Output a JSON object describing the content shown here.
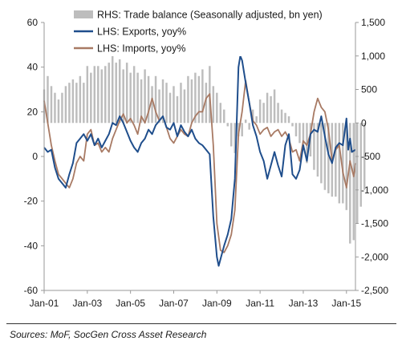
{
  "chart_data": {
    "type": "combo",
    "x_unit": "month",
    "x_range": [
      "2001-01",
      "2015-06"
    ],
    "x_ticks": [
      "Jan-01",
      "Jan-03",
      "Jan-05",
      "Jan-07",
      "Jan-09",
      "Jan-11",
      "Jan-13",
      "Jan-15"
    ],
    "left_axis": {
      "ticks": [
        "60",
        "40",
        "20",
        "0",
        "-20",
        "-40",
        "-60"
      ],
      "ylim": [
        -60,
        60
      ]
    },
    "right_axis": {
      "ticks": [
        "1,500",
        "1,000",
        "500",
        "0",
        "-500",
        "-1,000",
        "-1,500",
        "-2,000",
        "-2,500"
      ],
      "ylim": [
        -2500,
        1500
      ]
    },
    "gridlines": false,
    "legend": {
      "placement": "top-center"
    },
    "series": [
      {
        "name": "RHS: Trade balance (Seasonally adjusted, bn yen)",
        "kind": "bar",
        "axis": "right",
        "color": "#bdbdbd",
        "sampled_every_months": 2,
        "values": [
          500,
          700,
          550,
          450,
          350,
          450,
          550,
          600,
          650,
          600,
          700,
          600,
          850,
          750,
          850,
          850,
          800,
          850,
          900,
          1000,
          900,
          950,
          800,
          900,
          750,
          850,
          750,
          650,
          800,
          700,
          550,
          700,
          500,
          650,
          600,
          450,
          550,
          400,
          600,
          500,
          700,
          650,
          750,
          700,
          800,
          600,
          850,
          550,
          450,
          300,
          200,
          -50,
          -350,
          -450,
          -200,
          -200,
          50,
          -100,
          200,
          100,
          350,
          300,
          450,
          400,
          500,
          300,
          200,
          150,
          100,
          -50,
          -200,
          -300,
          -400,
          -600,
          -500,
          -700,
          -800,
          -900,
          -1000,
          -1050,
          -1100,
          -1100,
          -1200,
          -1200,
          -1300,
          -1800,
          -1750,
          -1500,
          -1250,
          -1000
        ]
      },
      {
        "name": "LHS: Exports, yoy%",
        "kind": "line",
        "axis": "left",
        "color": "#1f4e8c",
        "points": [
          [
            "2001-01",
            4
          ],
          [
            "2001-03",
            2
          ],
          [
            "2001-05",
            3
          ],
          [
            "2001-07",
            -5
          ],
          [
            "2001-09",
            -10
          ],
          [
            "2001-11",
            -12
          ],
          [
            "2002-01",
            -14
          ],
          [
            "2002-03",
            -8
          ],
          [
            "2002-05",
            -3
          ],
          [
            "2002-07",
            6
          ],
          [
            "2002-09",
            8
          ],
          [
            "2002-11",
            10
          ],
          [
            "2003-01",
            7
          ],
          [
            "2003-03",
            10
          ],
          [
            "2003-05",
            5
          ],
          [
            "2003-07",
            8
          ],
          [
            "2003-09",
            4
          ],
          [
            "2003-11",
            7
          ],
          [
            "2004-01",
            10
          ],
          [
            "2004-03",
            15
          ],
          [
            "2004-05",
            14
          ],
          [
            "2004-07",
            18
          ],
          [
            "2004-09",
            15
          ],
          [
            "2004-11",
            11
          ],
          [
            "2005-01",
            7
          ],
          [
            "2005-03",
            4
          ],
          [
            "2005-05",
            2
          ],
          [
            "2005-07",
            6
          ],
          [
            "2005-09",
            8
          ],
          [
            "2005-11",
            12
          ],
          [
            "2006-01",
            10
          ],
          [
            "2006-03",
            14
          ],
          [
            "2006-05",
            16
          ],
          [
            "2006-07",
            18
          ],
          [
            "2006-09",
            13
          ],
          [
            "2006-11",
            12
          ],
          [
            "2007-01",
            15
          ],
          [
            "2007-03",
            9
          ],
          [
            "2007-05",
            14
          ],
          [
            "2007-07",
            11
          ],
          [
            "2007-09",
            9
          ],
          [
            "2007-11",
            12
          ],
          [
            "2008-01",
            8
          ],
          [
            "2008-03",
            6
          ],
          [
            "2008-05",
            5
          ],
          [
            "2008-07",
            3
          ],
          [
            "2008-09",
            1
          ],
          [
            "2008-11",
            -27
          ],
          [
            "2009-01",
            -45
          ],
          [
            "2009-02",
            -49
          ],
          [
            "2009-03",
            -46
          ],
          [
            "2009-05",
            -40
          ],
          [
            "2009-07",
            -35
          ],
          [
            "2009-09",
            -28
          ],
          [
            "2009-11",
            -10
          ],
          [
            "2010-01",
            40
          ],
          [
            "2010-02",
            45
          ],
          [
            "2010-03",
            43
          ],
          [
            "2010-05",
            33
          ],
          [
            "2010-07",
            24
          ],
          [
            "2010-09",
            14
          ],
          [
            "2010-11",
            9
          ],
          [
            "2011-01",
            2
          ],
          [
            "2011-03",
            -2
          ],
          [
            "2011-05",
            -10
          ],
          [
            "2011-07",
            -4
          ],
          [
            "2011-09",
            2
          ],
          [
            "2011-11",
            -4
          ],
          [
            "2012-01",
            -9
          ],
          [
            "2012-03",
            5
          ],
          [
            "2012-05",
            10
          ],
          [
            "2012-07",
            -8
          ],
          [
            "2012-09",
            -10
          ],
          [
            "2012-11",
            -6
          ],
          [
            "2013-01",
            5
          ],
          [
            "2013-03",
            -2
          ],
          [
            "2013-05",
            10
          ],
          [
            "2013-07",
            12
          ],
          [
            "2013-09",
            11
          ],
          [
            "2013-11",
            18
          ],
          [
            "2014-01",
            9
          ],
          [
            "2014-03",
            1
          ],
          [
            "2014-05",
            -3
          ],
          [
            "2014-07",
            4
          ],
          [
            "2014-09",
            6
          ],
          [
            "2014-11",
            5
          ],
          [
            "2015-01",
            17
          ],
          [
            "2015-02",
            3
          ],
          [
            "2015-03",
            8
          ],
          [
            "2015-04",
            2
          ],
          [
            "2015-06",
            3
          ]
        ]
      },
      {
        "name": "LHS: Imports, yoy%",
        "kind": "line",
        "axis": "left",
        "color": "#a87a64",
        "points": [
          [
            "2001-01",
            25
          ],
          [
            "2001-03",
            15
          ],
          [
            "2001-05",
            5
          ],
          [
            "2001-07",
            -2
          ],
          [
            "2001-09",
            -8
          ],
          [
            "2001-11",
            -10
          ],
          [
            "2002-01",
            -12
          ],
          [
            "2002-03",
            -14
          ],
          [
            "2002-05",
            -10
          ],
          [
            "2002-07",
            -3
          ],
          [
            "2002-09",
            0
          ],
          [
            "2002-11",
            -2
          ],
          [
            "2003-01",
            10
          ],
          [
            "2003-03",
            12
          ],
          [
            "2003-05",
            5
          ],
          [
            "2003-07",
            6
          ],
          [
            "2003-09",
            2
          ],
          [
            "2003-11",
            4
          ],
          [
            "2004-01",
            2
          ],
          [
            "2004-03",
            8
          ],
          [
            "2004-05",
            12
          ],
          [
            "2004-07",
            16
          ],
          [
            "2004-09",
            19
          ],
          [
            "2004-11",
            15
          ],
          [
            "2005-01",
            17
          ],
          [
            "2005-03",
            14
          ],
          [
            "2005-05",
            10
          ],
          [
            "2005-07",
            18
          ],
          [
            "2005-09",
            15
          ],
          [
            "2005-11",
            20
          ],
          [
            "2006-01",
            26
          ],
          [
            "2006-03",
            20
          ],
          [
            "2006-05",
            16
          ],
          [
            "2006-07",
            18
          ],
          [
            "2006-09",
            13
          ],
          [
            "2006-11",
            8
          ],
          [
            "2007-01",
            6
          ],
          [
            "2007-03",
            9
          ],
          [
            "2007-05",
            12
          ],
          [
            "2007-07",
            10
          ],
          [
            "2007-09",
            9
          ],
          [
            "2007-11",
            15
          ],
          [
            "2008-01",
            18
          ],
          [
            "2008-03",
            20
          ],
          [
            "2008-05",
            20
          ],
          [
            "2008-07",
            26
          ],
          [
            "2008-09",
            28
          ],
          [
            "2008-11",
            5
          ],
          [
            "2009-01",
            -30
          ],
          [
            "2009-03",
            -42
          ],
          [
            "2009-05",
            -43
          ],
          [
            "2009-07",
            -40
          ],
          [
            "2009-09",
            -35
          ],
          [
            "2009-11",
            -24
          ],
          [
            "2010-01",
            10
          ],
          [
            "2010-03",
            20
          ],
          [
            "2010-05",
            34
          ],
          [
            "2010-07",
            24
          ],
          [
            "2010-09",
            16
          ],
          [
            "2010-11",
            14
          ],
          [
            "2011-01",
            10
          ],
          [
            "2011-03",
            12
          ],
          [
            "2011-05",
            13
          ],
          [
            "2011-07",
            9
          ],
          [
            "2011-09",
            11
          ],
          [
            "2011-11",
            12
          ],
          [
            "2012-01",
            9
          ],
          [
            "2012-03",
            11
          ],
          [
            "2012-05",
            8
          ],
          [
            "2012-07",
            2
          ],
          [
            "2012-09",
            3
          ],
          [
            "2012-11",
            -2
          ],
          [
            "2013-01",
            7
          ],
          [
            "2013-03",
            5
          ],
          [
            "2013-05",
            10
          ],
          [
            "2013-07",
            20
          ],
          [
            "2013-09",
            26
          ],
          [
            "2013-11",
            22
          ],
          [
            "2014-01",
            20
          ],
          [
            "2014-03",
            12
          ],
          [
            "2014-05",
            -2
          ],
          [
            "2014-07",
            3
          ],
          [
            "2014-09",
            5
          ],
          [
            "2014-11",
            -7
          ],
          [
            "2015-01",
            -14
          ],
          [
            "2015-03",
            -2
          ],
          [
            "2015-05",
            -9
          ],
          [
            "2015-06",
            -3
          ]
        ]
      }
    ]
  },
  "source_note": "Sources: MoF, SocGen Cross Asset Research"
}
